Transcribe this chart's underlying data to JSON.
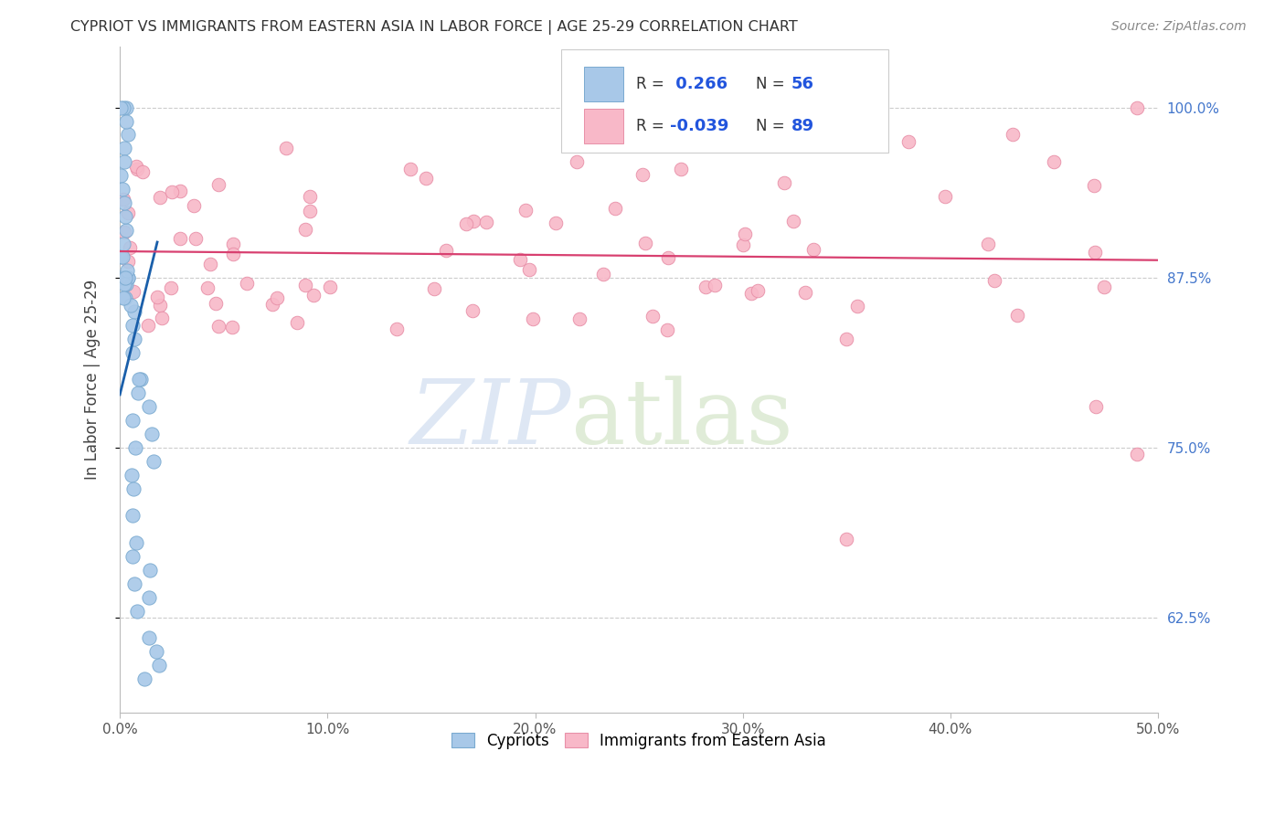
{
  "title": "CYPRIOT VS IMMIGRANTS FROM EASTERN ASIA IN LABOR FORCE | AGE 25-29 CORRELATION CHART",
  "source": "Source: ZipAtlas.com",
  "ylabel": "In Labor Force | Age 25-29",
  "xlim": [
    0.0,
    0.5
  ],
  "ylim": [
    0.555,
    1.045
  ],
  "xticks": [
    0.0,
    0.1,
    0.2,
    0.3,
    0.4,
    0.5
  ],
  "xticklabels": [
    "0.0%",
    "10.0%",
    "20.0%",
    "30.0%",
    "40.0%",
    "50.0%"
  ],
  "yticks": [
    0.625,
    0.75,
    0.875,
    1.0
  ],
  "yticklabels": [
    "62.5%",
    "75.0%",
    "87.5%",
    "100.0%"
  ],
  "cypriot_color": "#a8c8e8",
  "cypriot_edge": "#7aaad0",
  "eastasia_color": "#f8b8c8",
  "eastasia_edge": "#e890a8",
  "trend_blue": "#1a5faa",
  "trend_pink": "#d84070",
  "background_color": "#ffffff",
  "grid_color": "#cccccc",
  "R_blue": "0.266",
  "N_blue": "56",
  "R_pink": "-0.039",
  "N_pink": "89"
}
